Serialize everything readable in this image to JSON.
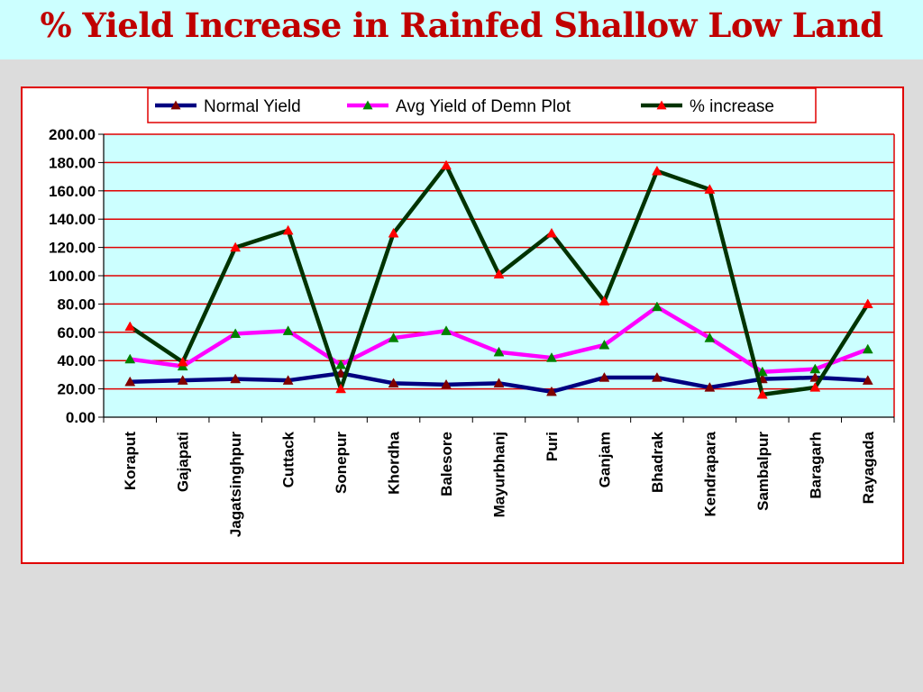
{
  "page": {
    "title": "% Yield Increase in Rainfed Shallow Low Land"
  },
  "chart_data": {
    "type": "line",
    "title": "",
    "xlabel": "",
    "ylabel": "",
    "ylim": [
      0,
      200
    ],
    "ytick_step": 20,
    "grid": true,
    "legend_position": "top",
    "plot_background": "#ccffff",
    "gridline_color": "#e00000",
    "categories": [
      "Koraput",
      "Gajapati",
      "Jagatsinghpur",
      "Cuttack",
      "Sonepur",
      "Khordha",
      "Balesore",
      "Mayurbhanj",
      "Puri",
      "Ganjam",
      "Bhadrak",
      "Kendrapara",
      "Sambalpur",
      "Baragarh",
      "Rayagada"
    ],
    "series": [
      {
        "name": "Normal Yield",
        "line_color": "#000080",
        "marker_color": "#800000",
        "values": [
          25,
          26,
          27,
          26,
          31,
          24,
          23,
          24,
          18,
          28,
          28,
          21,
          27,
          28,
          26
        ]
      },
      {
        "name": "Avg Yield of Demn Plot",
        "line_color": "#ff00ff",
        "marker_color": "#008000",
        "values": [
          41,
          36,
          59,
          61,
          37,
          56,
          61,
          46,
          42,
          51,
          78,
          56,
          32,
          34,
          48
        ]
      },
      {
        "name": "% increase",
        "line_color": "#003300",
        "marker_color": "#ff0000",
        "values": [
          64,
          39,
          120,
          132,
          20,
          130,
          178,
          101,
          130,
          82,
          174,
          161,
          16,
          21,
          80
        ]
      }
    ]
  }
}
